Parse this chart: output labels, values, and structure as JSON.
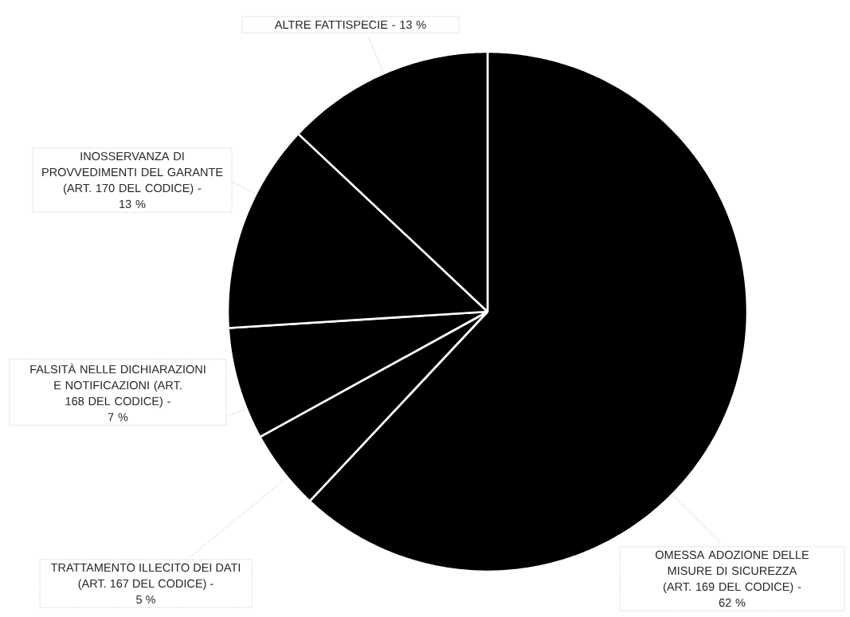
{
  "chart_data": {
    "type": "pie",
    "categories": [
      "OMESSA ADOZIONE DELLE MISURE DI SICUREZZA (ART. 169 DEL CODICE) -",
      "TRATTAMENTO ILLECITO DEI DATI (ART. 167 DEL CODICE) -",
      "FALSITÀ NELLE DICHIARAZIONI E NOTIFICAZIONI (ART. 168 DEL CODICE) -",
      "INOSSERVANZA DI PROVVEDIMENTI DEL GARANTE (ART. 170 DEL CODICE) -",
      "ALTRE FATTISPECIE -"
    ],
    "values": [
      62,
      5,
      7,
      13,
      13
    ],
    "value_labels": [
      "62 %",
      "5 %",
      "7 %",
      "13 %",
      "13 %"
    ],
    "colors": [
      "#000000",
      "#000000",
      "#000000",
      "#000000",
      "#000000"
    ]
  }
}
